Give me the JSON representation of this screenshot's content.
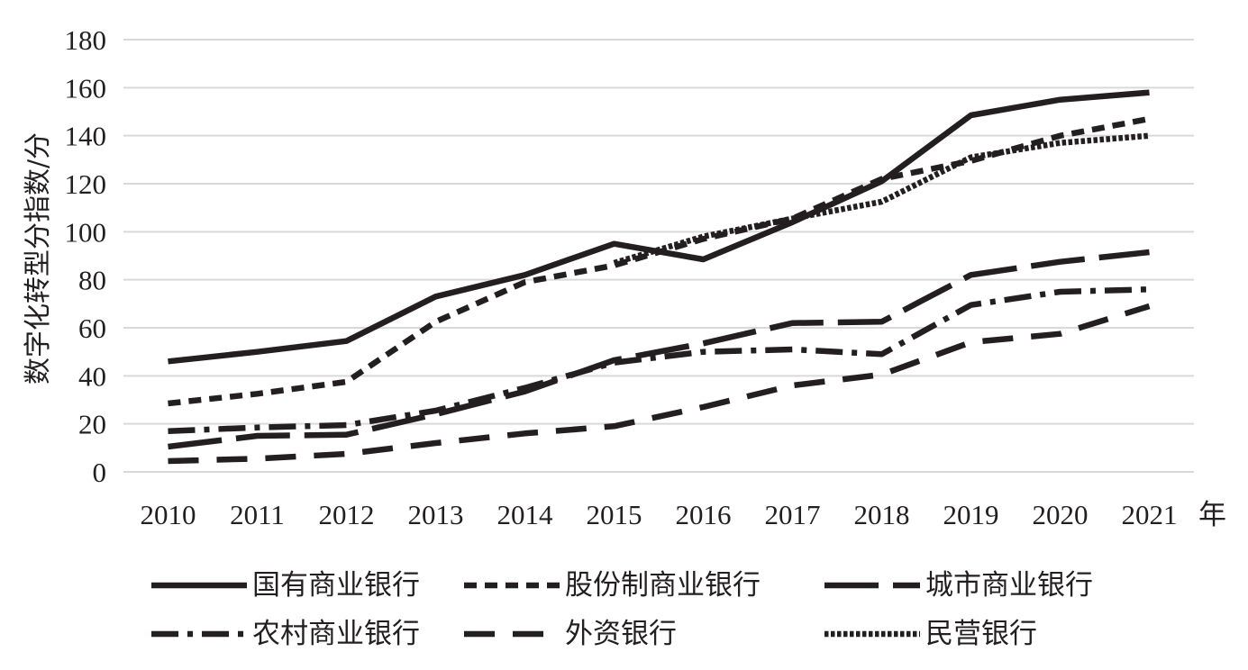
{
  "chart_data": {
    "type": "line",
    "title": "",
    "xlabel": "",
    "x_unit": "年",
    "ylabel": "数字化转型分指数/分",
    "categories": [
      "2010",
      "2011",
      "2012",
      "2013",
      "2014",
      "2015",
      "2016",
      "2017",
      "2018",
      "2019",
      "2020",
      "2021"
    ],
    "ylim": [
      0,
      180
    ],
    "yticks": [
      0,
      20,
      40,
      60,
      80,
      100,
      120,
      140,
      160,
      180
    ],
    "grid": true,
    "legend_position": "bottom",
    "series": [
      {
        "name": "国有商业银行",
        "dash": "solid",
        "color": "#231f20",
        "values": [
          46,
          50,
          54.5,
          73,
          82,
          95,
          88.5,
          104,
          121,
          148.5,
          155,
          158
        ]
      },
      {
        "name": "股份制商业银行",
        "dash": "short-dash",
        "color": "#231f20",
        "values": [
          28.5,
          32.5,
          37.5,
          62.5,
          79,
          86,
          97,
          105.5,
          122,
          129.5,
          140,
          147
        ]
      },
      {
        "name": "城市商业银行",
        "dash": "long-dash",
        "color": "#231f20",
        "values": [
          10.5,
          15,
          15.5,
          24,
          33.5,
          46.5,
          53.5,
          62,
          62.5,
          82,
          87.5,
          91.5
        ]
      },
      {
        "name": "农村商业银行",
        "dash": "dash-dot",
        "color": "#231f20",
        "values": [
          17,
          18.5,
          19.5,
          25.5,
          35,
          45.5,
          50,
          51,
          49,
          69.5,
          75,
          76
        ]
      },
      {
        "name": "外资银行",
        "dash": "medium-dash",
        "color": "#231f20",
        "values": [
          4.5,
          5.5,
          7.5,
          12,
          16,
          19,
          27,
          36,
          40.5,
          54,
          57.5,
          69
        ]
      },
      {
        "name": "民营银行",
        "dash": "dotted",
        "color": "#231f20",
        "values": [
          null,
          null,
          null,
          null,
          null,
          87,
          98,
          105.5,
          112.5,
          131,
          137,
          140
        ]
      }
    ]
  }
}
